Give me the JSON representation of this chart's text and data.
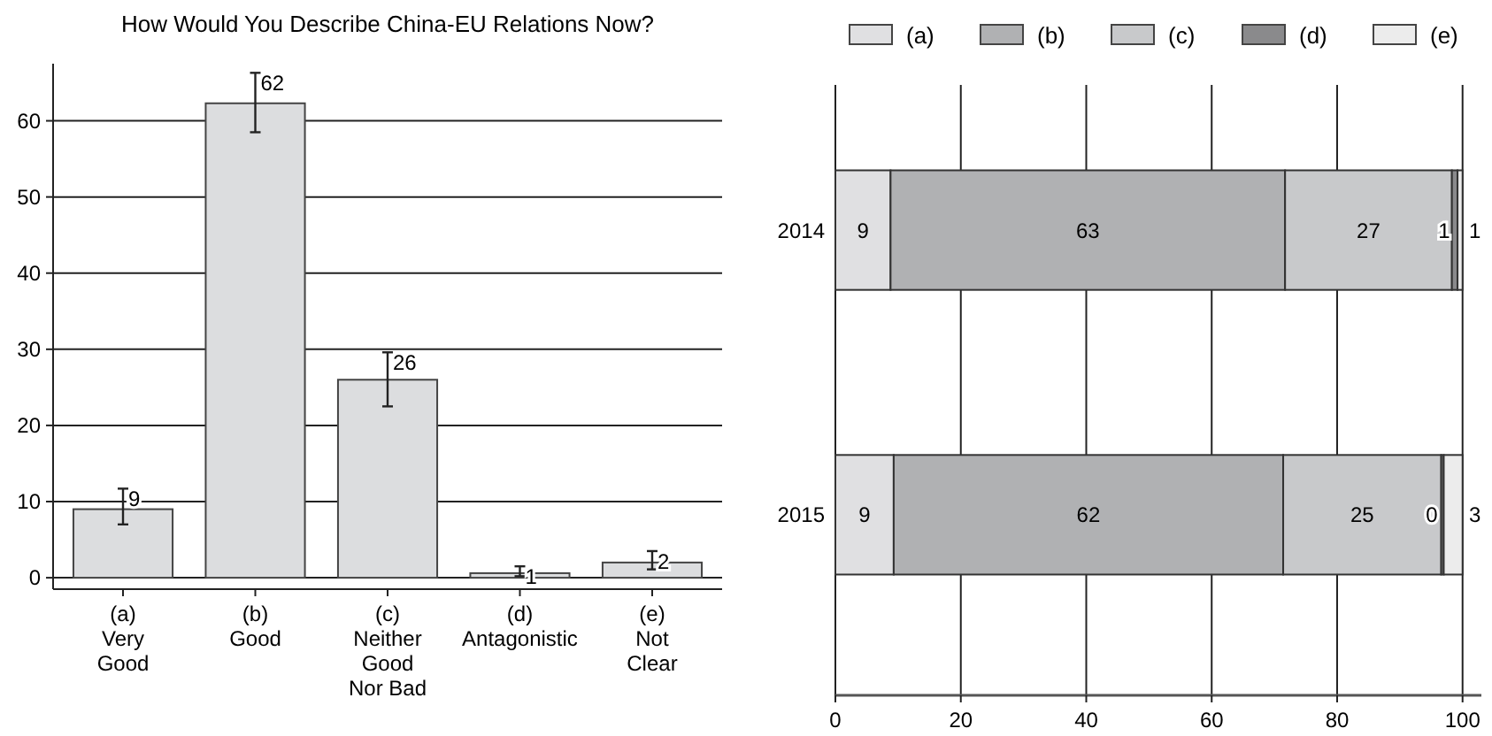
{
  "chart_data": [
    {
      "type": "bar",
      "title": "How Would You Describe China-EU Relations Now?",
      "categories": [
        "(a)\nVery\nGood",
        "(b)\nGood",
        "(c)\nNeither\nGood\nNor Bad",
        "(d)\nAntagonistic",
        "(e)\nNot\nClear"
      ],
      "values": [
        9,
        62.3,
        26,
        0.6,
        2
      ],
      "value_labels": [
        "9",
        "62",
        "26",
        "1",
        "2"
      ],
      "errors": [
        [
          7,
          11.7
        ],
        [
          58.5,
          66.3
        ],
        [
          22.5,
          29.6
        ],
        [
          0.2,
          1.5
        ],
        [
          1.1,
          3.5
        ]
      ],
      "color": "#dcdddf",
      "ylim": [
        -1.5,
        67.5
      ],
      "yticks": [
        0,
        10,
        20,
        30,
        40,
        50,
        60
      ],
      "grid": "y"
    },
    {
      "type": "bar",
      "orientation": "horizontal",
      "stacked": true,
      "categories": [
        "2014",
        "2015"
      ],
      "series": [
        {
          "name": "(a)",
          "color": "#e0e0e2",
          "values": [
            8.8,
            9.3
          ],
          "value_labels": [
            "9",
            "9"
          ]
        },
        {
          "name": "(b)",
          "color": "#b0b1b3",
          "values": [
            62.9,
            62.1
          ],
          "value_labels": [
            "63",
            "62"
          ]
        },
        {
          "name": "(c)",
          "color": "#c8c9cb",
          "values": [
            26.6,
            25.2
          ],
          "value_labels": [
            "27",
            "25"
          ]
        },
        {
          "name": "(d)",
          "color": "#8a8a8c",
          "values": [
            0.9,
            0.4
          ],
          "value_labels": [
            "1",
            "0"
          ]
        },
        {
          "name": "(e)",
          "color": "#ececec",
          "values": [
            0.8,
            3
          ],
          "value_labels": [
            "1",
            "3"
          ]
        }
      ],
      "xlim": [
        0,
        103
      ],
      "xticks": [
        0,
        20,
        40,
        60,
        80,
        100
      ],
      "grid": "x",
      "legend": "top"
    }
  ]
}
